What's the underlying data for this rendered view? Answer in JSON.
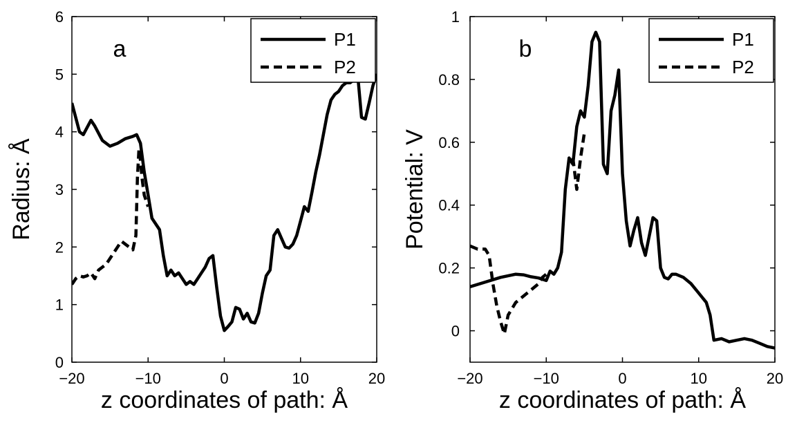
{
  "chart_data": [
    {
      "type": "line",
      "panel_label": "a",
      "xlabel": "z coordinates of path: Å",
      "ylabel": "Radius: Å",
      "xlim": [
        -20,
        20
      ],
      "ylim": [
        0,
        6
      ],
      "xticks": [
        "−20",
        "−10",
        "0",
        "10",
        "20"
      ],
      "yticks": [
        "0",
        "1",
        "2",
        "3",
        "4",
        "5",
        "6"
      ],
      "grid": false,
      "legend_position": "top-right",
      "series": [
        {
          "name": "P1",
          "style": "solid",
          "x": [
            -20,
            -19,
            -18.5,
            -17.5,
            -17,
            -16,
            -15,
            -14,
            -13,
            -12,
            -11.5,
            -11,
            -10.5,
            -10,
            -9.5,
            -9,
            -8.5,
            -8,
            -7.5,
            -7,
            -6.5,
            -6,
            -5.5,
            -5,
            -4.5,
            -4,
            -3.5,
            -3,
            -2.5,
            -2,
            -1.5,
            -1,
            -0.5,
            0,
            0.5,
            1,
            1.5,
            2,
            2.5,
            3,
            3.5,
            4,
            4.5,
            5,
            5.5,
            6,
            6.5,
            7,
            7.5,
            8,
            8.5,
            9,
            9.5,
            10,
            10.5,
            11,
            11.5,
            12,
            12.5,
            13,
            13.5,
            14,
            14.5,
            15,
            15.5,
            16,
            16.5,
            17,
            17.5,
            18,
            18.5,
            19,
            19.5,
            20
          ],
          "y": [
            4.5,
            4.0,
            3.95,
            4.2,
            4.1,
            3.85,
            3.75,
            3.8,
            3.88,
            3.92,
            3.95,
            3.8,
            3.3,
            2.9,
            2.5,
            2.4,
            2.3,
            1.85,
            1.5,
            1.6,
            1.5,
            1.55,
            1.45,
            1.35,
            1.4,
            1.35,
            1.45,
            1.55,
            1.65,
            1.8,
            1.85,
            1.3,
            0.8,
            0.55,
            0.62,
            0.7,
            0.95,
            0.92,
            0.75,
            0.85,
            0.7,
            0.68,
            0.85,
            1.2,
            1.5,
            1.6,
            2.2,
            2.3,
            2.15,
            2.0,
            1.98,
            2.05,
            2.2,
            2.45,
            2.7,
            2.62,
            2.95,
            3.3,
            3.6,
            3.95,
            4.3,
            4.55,
            4.65,
            4.7,
            4.8,
            4.85,
            4.85,
            4.9,
            5.0,
            4.25,
            4.22,
            4.5,
            4.8,
            5.0
          ]
        },
        {
          "name": "P2",
          "style": "dashed",
          "x": [
            -20,
            -19.5,
            -19,
            -18.5,
            -18,
            -17.5,
            -17,
            -16.5,
            -16,
            -15.5,
            -15,
            -14.5,
            -14,
            -13.5,
            -13,
            -12.5,
            -12,
            -11.6,
            -11.4,
            -11.2,
            -11,
            -10.8,
            -10.5,
            -10
          ],
          "y": [
            1.35,
            1.45,
            1.5,
            1.48,
            1.5,
            1.55,
            1.45,
            1.6,
            1.65,
            1.7,
            1.8,
            1.9,
            2.0,
            2.1,
            2.05,
            2.0,
            1.95,
            2.2,
            3.2,
            3.7,
            3.5,
            3.2,
            2.9,
            2.7
          ]
        }
      ]
    },
    {
      "type": "line",
      "panel_label": "b",
      "xlabel": "z coordinates of path: Å",
      "ylabel": "Potential: V",
      "xlim": [
        -20,
        20
      ],
      "ylim": [
        -0.1,
        1
      ],
      "xticks": [
        "−20",
        "−10",
        "0",
        "10",
        "20"
      ],
      "yticks": [
        "0",
        "0.2",
        "0.4",
        "0.6",
        "0.8",
        "1"
      ],
      "ytick_values": [
        0,
        0.2,
        0.4,
        0.6,
        0.8,
        1
      ],
      "grid": false,
      "legend_position": "top-right",
      "series": [
        {
          "name": "P1",
          "style": "solid",
          "x": [
            -20,
            -18,
            -16,
            -14,
            -13,
            -12,
            -11,
            -10,
            -9.5,
            -9,
            -8.5,
            -8,
            -7.5,
            -7,
            -6.5,
            -6,
            -5.5,
            -5,
            -4.5,
            -4,
            -3.5,
            -3,
            -2.5,
            -2,
            -1.5,
            -1,
            -0.5,
            0,
            0.5,
            1,
            1.5,
            2,
            2.5,
            3,
            3.5,
            4,
            4.5,
            5,
            5.5,
            6,
            6.5,
            7,
            8,
            9,
            10,
            11,
            11.5,
            12,
            13,
            14,
            15,
            16,
            17,
            18,
            19,
            20
          ],
          "y": [
            0.14,
            0.155,
            0.17,
            0.18,
            0.178,
            0.172,
            0.168,
            0.16,
            0.19,
            0.18,
            0.2,
            0.25,
            0.45,
            0.55,
            0.53,
            0.65,
            0.7,
            0.68,
            0.78,
            0.92,
            0.95,
            0.92,
            0.53,
            0.5,
            0.7,
            0.75,
            0.83,
            0.5,
            0.35,
            0.27,
            0.32,
            0.36,
            0.28,
            0.24,
            0.3,
            0.36,
            0.35,
            0.2,
            0.17,
            0.165,
            0.18,
            0.18,
            0.17,
            0.15,
            0.12,
            0.09,
            0.05,
            -0.03,
            -0.025,
            -0.035,
            -0.03,
            -0.025,
            -0.03,
            -0.04,
            -0.05,
            -0.055
          ]
        },
        {
          "name": "P2",
          "style": "dashed",
          "x": [
            -20,
            -19,
            -18,
            -17.5,
            -17,
            -16.5,
            -16,
            -15.5,
            -15,
            -14.5,
            -14,
            -13,
            -12,
            -11,
            -10.5,
            -10
          ],
          "y": [
            0.27,
            0.26,
            0.26,
            0.24,
            0.15,
            0.08,
            0.03,
            -0.01,
            0.05,
            0.07,
            0.09,
            0.11,
            0.13,
            0.15,
            0.17,
            0.18
          ]
        },
        {
          "name": "P2",
          "style": "dashed",
          "x": [
            -6.5,
            -6,
            -5.5,
            -5
          ],
          "y": [
            0.55,
            0.45,
            0.55,
            0.63
          ]
        }
      ]
    }
  ]
}
